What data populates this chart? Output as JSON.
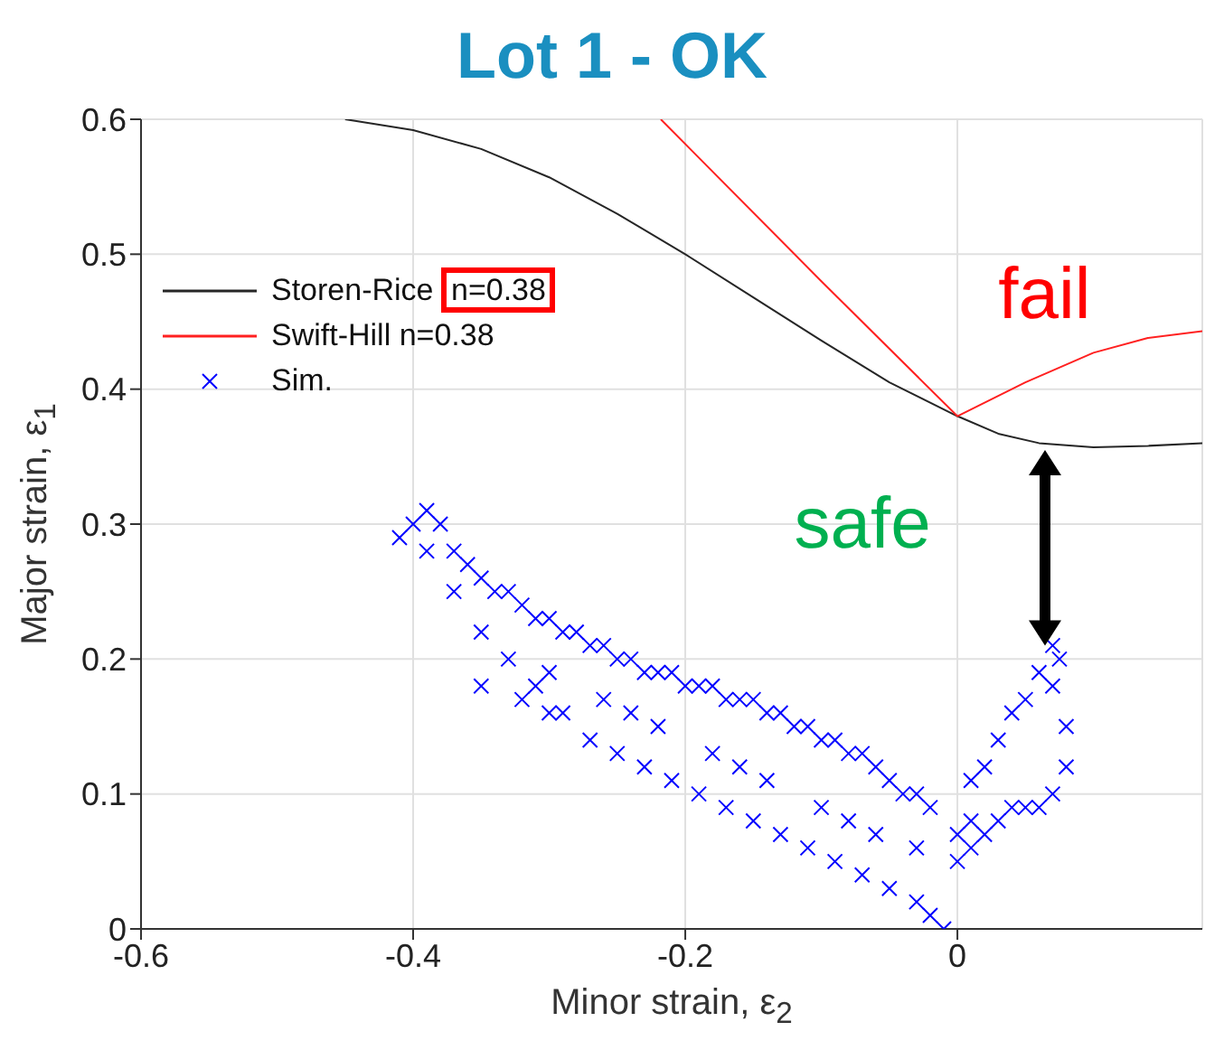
{
  "chart_data": {
    "type": "scatter",
    "title": "Lot 1 - OK",
    "xlabel": "Minor strain, ε$_{2}$",
    "ylabel": "Major strain, ε$_{1}$",
    "xlim": [
      -0.6,
      0.18
    ],
    "xticks": [
      -0.6,
      -0.4,
      -0.2,
      0
    ],
    "ylim": [
      0,
      0.6
    ],
    "yticks": [
      0,
      0.1,
      0.2,
      0.3,
      0.4,
      0.5,
      0.6
    ],
    "grid": true,
    "legend": "top left",
    "annotations": [
      "fail",
      "safe"
    ],
    "series": [
      {
        "name": "Storen-Rice n=0.38",
        "type": "line",
        "color": "#262626",
        "marker": "none",
        "x": [
          -0.45,
          -0.4,
          -0.35,
          -0.3,
          -0.25,
          -0.2,
          -0.15,
          -0.1,
          -0.05,
          0,
          0.03,
          0.06,
          0.1,
          0.14,
          0.18
        ],
        "values": [
          0.6,
          0.592,
          0.578,
          0.557,
          0.53,
          0.5,
          0.468,
          0.436,
          0.405,
          0.38,
          0.367,
          0.36,
          0.357,
          0.358,
          0.36
        ]
      },
      {
        "name": "Swift-Hill n=0.38",
        "type": "line",
        "color": "#ff2020",
        "marker": "none",
        "x": [
          -0.218,
          -0.1,
          0,
          0.05,
          0.1,
          0.14,
          0.18
        ],
        "values": [
          0.6,
          0.48,
          0.38,
          0.405,
          0.427,
          0.438,
          0.443
        ]
      },
      {
        "name": "Sim.",
        "color": "#0000ff",
        "marker": "cross",
        "x": [
          -0.41,
          -0.4,
          -0.39,
          -0.38,
          -0.39,
          -0.37,
          -0.36,
          -0.35,
          -0.34,
          -0.33,
          -0.32,
          -0.31,
          -0.3,
          -0.29,
          -0.28,
          -0.27,
          -0.26,
          -0.25,
          -0.24,
          -0.23,
          -0.22,
          -0.21,
          -0.2,
          -0.19,
          -0.18,
          -0.17,
          -0.16,
          -0.15,
          -0.14,
          -0.13,
          -0.12,
          -0.11,
          -0.1,
          -0.09,
          -0.08,
          -0.07,
          -0.06,
          -0.05,
          -0.04,
          -0.03,
          -0.02,
          -0.37,
          -0.35,
          -0.33,
          -0.31,
          -0.29,
          -0.27,
          -0.25,
          -0.23,
          -0.21,
          -0.19,
          -0.17,
          -0.15,
          -0.13,
          -0.11,
          -0.09,
          -0.07,
          -0.05,
          -0.03,
          -0.02,
          -0.01,
          -0.3,
          -0.26,
          -0.22,
          -0.18,
          -0.14,
          -0.1,
          -0.06,
          -0.03,
          -0.24,
          -0.16,
          -0.08,
          -0.35,
          -0.32,
          -0.3,
          0,
          0,
          0.01,
          0.01,
          0.02,
          0.03,
          0.04,
          0.05,
          0.06,
          0.07,
          0.07,
          0.08,
          0.08,
          0.07,
          0.06,
          0.05,
          0.04,
          0.03,
          0.02,
          0.01,
          0.075
        ],
        "values": [
          0.29,
          0.3,
          0.31,
          0.3,
          0.28,
          0.28,
          0.27,
          0.26,
          0.25,
          0.25,
          0.24,
          0.23,
          0.23,
          0.22,
          0.22,
          0.21,
          0.21,
          0.2,
          0.2,
          0.19,
          0.19,
          0.19,
          0.18,
          0.18,
          0.18,
          0.17,
          0.17,
          0.17,
          0.16,
          0.16,
          0.15,
          0.15,
          0.14,
          0.14,
          0.13,
          0.13,
          0.12,
          0.11,
          0.1,
          0.1,
          0.09,
          0.25,
          0.22,
          0.2,
          0.18,
          0.16,
          0.14,
          0.13,
          0.12,
          0.11,
          0.1,
          0.09,
          0.08,
          0.07,
          0.06,
          0.05,
          0.04,
          0.03,
          0.02,
          0.01,
          0,
          0.19,
          0.17,
          0.15,
          0.13,
          0.11,
          0.09,
          0.07,
          0.06,
          0.16,
          0.12,
          0.08,
          0.18,
          0.17,
          0.16,
          0.05,
          0.07,
          0.08,
          0.11,
          0.12,
          0.14,
          0.16,
          0.17,
          0.19,
          0.21,
          0.18,
          0.15,
          0.12,
          0.1,
          0.09,
          0.09,
          0.09,
          0.08,
          0.07,
          0.06,
          0.2
        ]
      }
    ]
  }
}
